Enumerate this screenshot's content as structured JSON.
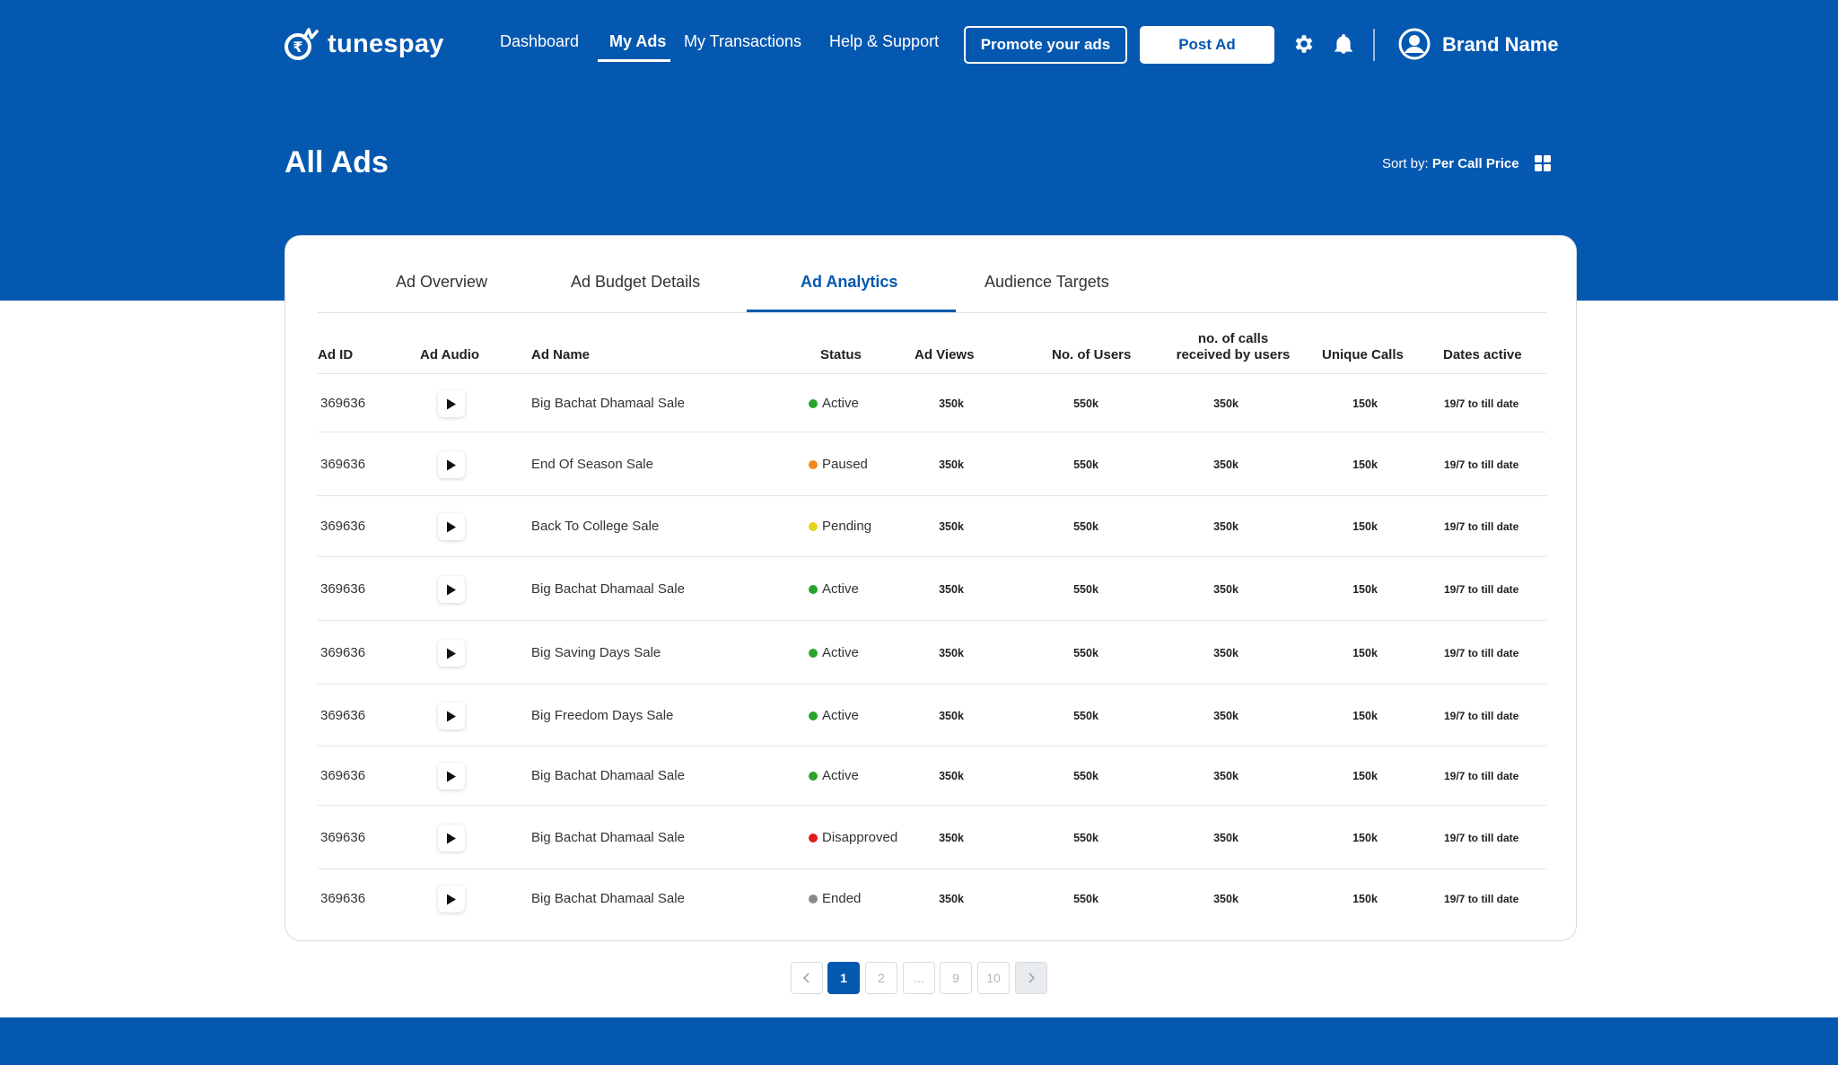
{
  "colors": {
    "brand_blue": "#0558B0",
    "active": "#2BA32B",
    "paused": "#F08A1C",
    "pending": "#E6D51A",
    "disapproved": "#E01B1B",
    "ended": "#8A8A8A"
  },
  "header": {
    "logo_text": "tunespay",
    "nav": [
      {
        "label": "Dashboard",
        "active": false
      },
      {
        "label": "My Ads",
        "active": true
      },
      {
        "label": "My Transactions",
        "active": false
      },
      {
        "label": "Help & Support",
        "active": false
      }
    ],
    "promote_label": "Promote your ads",
    "post_label": "Post Ad",
    "settings_icon": "gear-icon",
    "notifications_icon": "bell-icon",
    "brand_name": "Brand Name"
  },
  "page": {
    "title": "All Ads",
    "sort_prefix": "Sort by:",
    "sort_value": "Per Call Price"
  },
  "tabs": [
    {
      "label": "Ad Overview",
      "active": false
    },
    {
      "label": "Ad Budget Details",
      "active": false
    },
    {
      "label": "Ad Analytics",
      "active": true
    },
    {
      "label": "Audience Targets",
      "active": false
    }
  ],
  "table": {
    "headers": {
      "ad_id": "Ad ID",
      "ad_audio": "Ad Audio",
      "ad_name": "Ad Name",
      "status": "Status",
      "ad_views": "Ad Views",
      "users": "No. of Users",
      "calls_line1": "no. of calls",
      "calls_line2": "received by users",
      "unique_calls": "Unique Calls",
      "dates": "Dates active"
    },
    "rows": [
      {
        "id": "369636",
        "name": "Big Bachat Dhamaal Sale",
        "status": "Active",
        "status_color": "#2BA32B",
        "views": "350k",
        "users": "550k",
        "calls": "350k",
        "unique": "150k",
        "dates": "19/7 to till date"
      },
      {
        "id": "369636",
        "name": "End Of Season Sale",
        "status": "Paused",
        "status_color": "#F08A1C",
        "views": "350k",
        "users": "550k",
        "calls": "350k",
        "unique": "150k",
        "dates": "19/7 to till date"
      },
      {
        "id": "369636",
        "name": "Back To College Sale",
        "status": "Pending",
        "status_color": "#E6D51A",
        "views": "350k",
        "users": "550k",
        "calls": "350k",
        "unique": "150k",
        "dates": "19/7 to till date"
      },
      {
        "id": "369636",
        "name": "Big Bachat Dhamaal Sale",
        "status": "Active",
        "status_color": "#2BA32B",
        "views": "350k",
        "users": "550k",
        "calls": "350k",
        "unique": "150k",
        "dates": "19/7 to till date"
      },
      {
        "id": "369636",
        "name": "Big Saving Days Sale",
        "status": "Active",
        "status_color": "#2BA32B",
        "views": "350k",
        "users": "550k",
        "calls": "350k",
        "unique": "150k",
        "dates": "19/7 to till date"
      },
      {
        "id": "369636",
        "name": "Big Freedom Days Sale",
        "status": "Active",
        "status_color": "#2BA32B",
        "views": "350k",
        "users": "550k",
        "calls": "350k",
        "unique": "150k",
        "dates": "19/7 to till date"
      },
      {
        "id": "369636",
        "name": "Big Bachat Dhamaal Sale",
        "status": "Active",
        "status_color": "#2BA32B",
        "views": "350k",
        "users": "550k",
        "calls": "350k",
        "unique": "150k",
        "dates": "19/7 to till date"
      },
      {
        "id": "369636",
        "name": "Big Bachat Dhamaal Sale",
        "status": "Disapproved",
        "status_color": "#E01B1B",
        "views": "350k",
        "users": "550k",
        "calls": "350k",
        "unique": "150k",
        "dates": "19/7 to till date"
      },
      {
        "id": "369636",
        "name": "Big Bachat Dhamaal Sale",
        "status": "Ended",
        "status_color": "#8A8A8A",
        "views": "350k",
        "users": "550k",
        "calls": "350k",
        "unique": "150k",
        "dates": "19/7 to till date"
      }
    ]
  },
  "pagination": {
    "prev_icon": "chevron-left-icon",
    "next_icon": "chevron-right-icon",
    "pages": [
      "1",
      "2",
      "...",
      "9",
      "10"
    ],
    "current": "1"
  }
}
